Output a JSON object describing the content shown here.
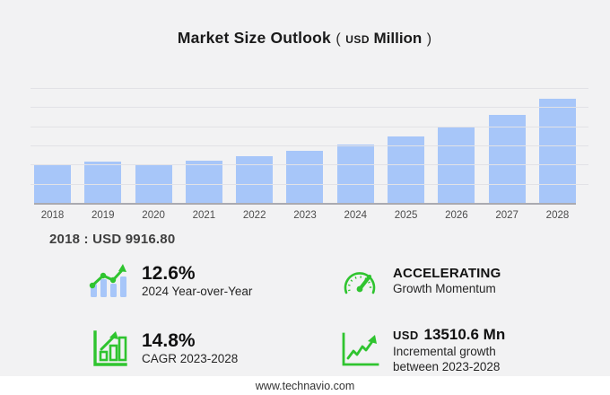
{
  "header": {
    "title": "Market Size Outlook",
    "paren_open": "(",
    "currency": "USD",
    "unit": "Million",
    "paren_close": ")"
  },
  "chart_data": {
    "type": "bar",
    "title": "Market Size Outlook (USD Million)",
    "categories": [
      "2018",
      "2019",
      "2020",
      "2021",
      "2022",
      "2023",
      "2024",
      "2025",
      "2026",
      "2027",
      "2028"
    ],
    "values": [
      9916.8,
      10840,
      10150,
      11070,
      12220,
      13600,
      15310,
      17300,
      19650,
      23060,
      27110
    ],
    "xlabel": "",
    "ylabel": "USD Million",
    "ylim": [
      0,
      30000
    ],
    "gridline_step": 5000,
    "grid": "on",
    "legend": "none",
    "bar_color": "#a7c6f9",
    "annotation": "2018 : USD  9916.80"
  },
  "annotation_text": "2018 : USD  9916.80",
  "stats": {
    "yoy": {
      "value": "12.6%",
      "label": "2024 Year-over-Year"
    },
    "momentum": {
      "value": "ACCELERATING",
      "label": "Growth Momentum"
    },
    "cagr": {
      "value": "14.8%",
      "label": "CAGR 2023-2028"
    },
    "incremental": {
      "prefix": "USD",
      "value": "13510.6 Mn",
      "label_line1": "Incremental growth",
      "label_line2": "between 2023-2028"
    }
  },
  "icons": {
    "yoy": "bar-trend-up-icon",
    "momentum": "speedometer-icon",
    "cagr": "bar-chart-growth-icon",
    "incremental": "line-chart-up-icon"
  },
  "colors": {
    "bar": "#a7c6f9",
    "accent_green": "#2fc42f",
    "background": "#f2f2f3",
    "gridline": "#e2e2e6"
  },
  "footer": {
    "url": "www.technavio.com"
  }
}
